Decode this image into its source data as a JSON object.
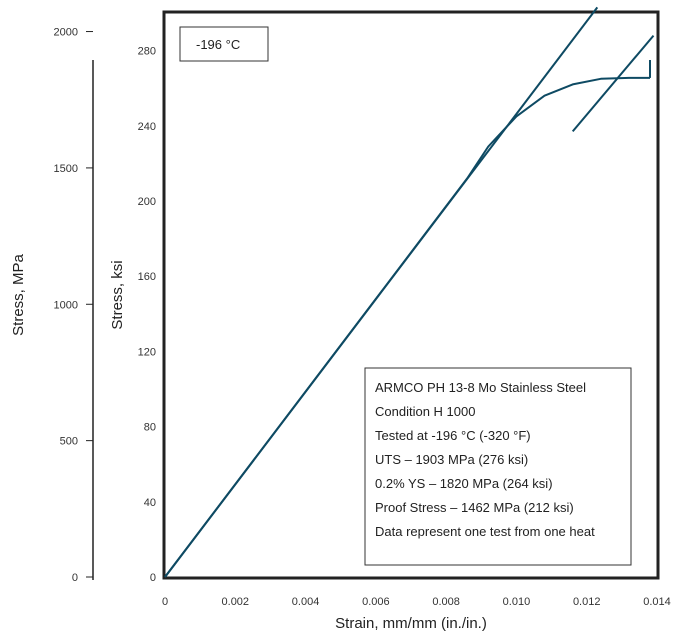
{
  "chart_data": {
    "type": "line",
    "temperature_label": "-196 °C",
    "xlabel": "Strain, mm/mm (in./in.)",
    "ylabel_left": "Stress, ksi",
    "ylabel_secondary": "Stress, MPa",
    "xlim": [
      0,
      0.014
    ],
    "ylim_ksi": [
      0,
      300
    ],
    "ylim_mpa": [
      0,
      2068
    ],
    "x_ticks": [
      "0",
      "0.002",
      "0.004",
      "0.006",
      "0.008",
      "0.010",
      "0.012",
      "0.014"
    ],
    "x_tick_values": [
      0,
      0.002,
      0.004,
      0.006,
      0.008,
      0.01,
      0.012,
      0.014
    ],
    "y_ticks_ksi": [
      "0",
      "40",
      "80",
      "120",
      "160",
      "200",
      "240",
      "280"
    ],
    "y_tick_values_ksi": [
      0,
      40,
      80,
      120,
      160,
      200,
      240,
      280
    ],
    "y_ticks_mpa": [
      "0",
      "500",
      "1000",
      "1500",
      "2000"
    ],
    "y_tick_values_mpa": [
      0,
      500,
      1000,
      1500,
      2000
    ],
    "series": [
      {
        "values": [
          [
            0,
            0
          ],
          [
            0.0086,
            212
          ],
          [
            0.0092,
            229
          ],
          [
            0.01,
            245
          ],
          [
            0.0108,
            256
          ],
          [
            0.0116,
            262
          ],
          [
            0.0124,
            265
          ],
          [
            0.0132,
            265.5
          ],
          [
            0.0138,
            265.5
          ]
        ],
        "color": "#0e4a63"
      },
      {
        "values": [
          [
            0,
            0
          ],
          [
            0.0123,
            303
          ]
        ],
        "color": "#0e4a63"
      },
      {
        "values": [
          [
            0.0116,
            237
          ],
          [
            0.0139,
            288
          ]
        ],
        "color": "#0e4a63"
      },
      {
        "values": [
          [
            0.0138,
            265.5
          ],
          [
            0.0138,
            275
          ]
        ],
        "color": "#0e4a63"
      }
    ],
    "annotation_lines": [
      "ARMCO PH 13-8 Mo Stainless Steel",
      "Condition H 1000",
      "Tested at -196 °C (-320 °F)",
      "UTS – 1903 MPa (276 ksi)",
      "0.2% YS – 1820 MPa (264 ksi)",
      "Proof Stress – 1462 MPa (212 ksi)",
      "Data represent one test from one heat"
    ]
  }
}
